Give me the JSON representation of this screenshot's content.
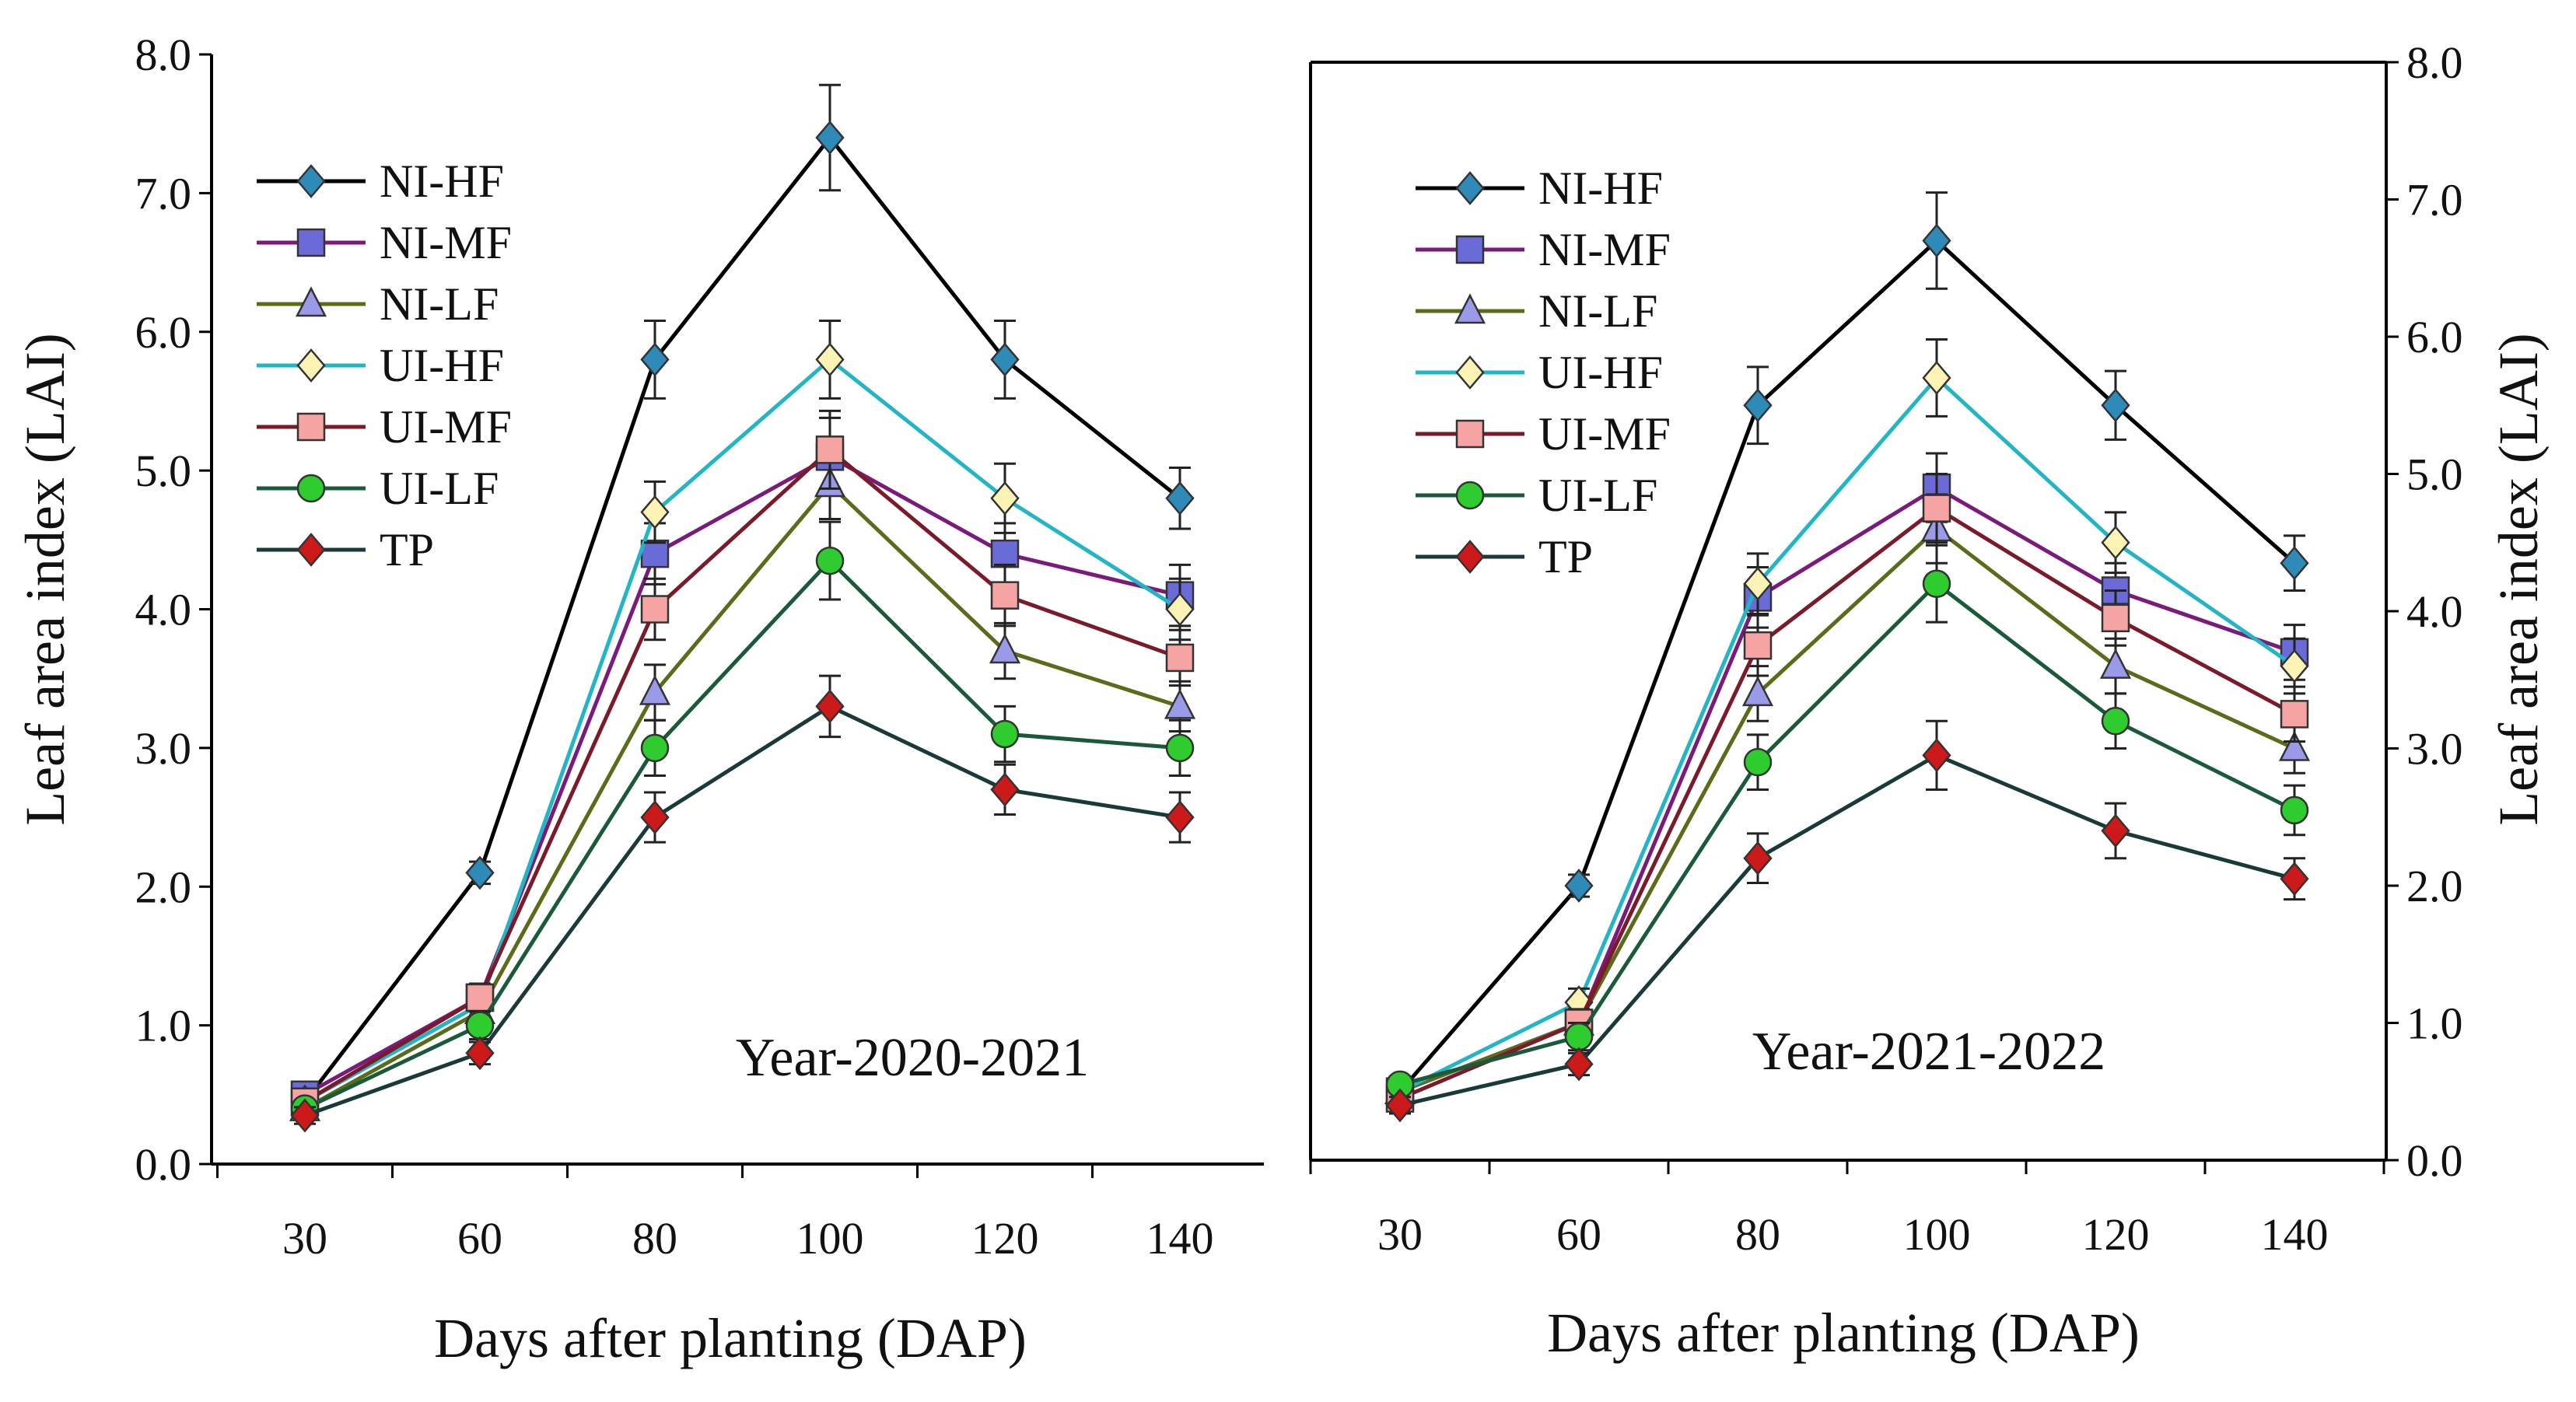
{
  "chart_data": [
    {
      "type": "line",
      "annotation": "Year-2020-2021",
      "xlabel": "Days after planting (DAP)",
      "ylabel": "Leaf area index (LAI)",
      "ylim": [
        0,
        8
      ],
      "yticks": [
        "0.0",
        "1.0",
        "2.0",
        "3.0",
        "4.0",
        "5.0",
        "6.0",
        "7.0",
        "8.0"
      ],
      "categories": [
        "30",
        "60",
        "80",
        "100",
        "120",
        "140"
      ],
      "legend_position": "top-left",
      "series": [
        {
          "name": "NI-HF",
          "marker": "diamond",
          "marker_color": "#2e8bb8",
          "line_color": "#000000",
          "values": [
            0.45,
            2.1,
            5.8,
            7.4,
            5.8,
            4.8
          ],
          "errors": [
            0.08,
            0.08,
            0.28,
            0.38,
            0.28,
            0.22
          ]
        },
        {
          "name": "NI-MF",
          "marker": "square",
          "marker_color": "#6b6bd8",
          "line_color": "#7a1a7a",
          "values": [
            0.5,
            1.2,
            4.4,
            5.1,
            4.4,
            4.1
          ],
          "errors": [
            0.06,
            0.1,
            0.22,
            0.28,
            0.22,
            0.22
          ]
        },
        {
          "name": "NI-LF",
          "marker": "triangle",
          "marker_color": "#9a9ae8",
          "line_color": "#5a6b1a",
          "values": [
            0.4,
            1.1,
            3.4,
            4.9,
            3.7,
            3.3
          ],
          "errors": [
            0.06,
            0.1,
            0.2,
            0.25,
            0.2,
            0.18
          ]
        },
        {
          "name": "UI-HF",
          "marker": "diamond",
          "marker_color": "#fdf3b5",
          "line_color": "#22b5c5",
          "values": [
            0.45,
            1.15,
            4.7,
            5.8,
            4.8,
            4.0
          ],
          "errors": [
            0.06,
            0.1,
            0.22,
            0.28,
            0.25,
            0.22
          ]
        },
        {
          "name": "UI-MF",
          "marker": "square",
          "marker_color": "#f5a3a3",
          "line_color": "#7a1a2a",
          "values": [
            0.45,
            1.2,
            4.0,
            5.15,
            4.1,
            3.65
          ],
          "errors": [
            0.06,
            0.1,
            0.22,
            0.28,
            0.22,
            0.2
          ]
        },
        {
          "name": "UI-LF",
          "marker": "circle",
          "marker_color": "#2ecc2e",
          "line_color": "#1a5a3a",
          "values": [
            0.4,
            1.0,
            3.0,
            4.35,
            3.1,
            3.0
          ],
          "errors": [
            0.06,
            0.1,
            0.2,
            0.28,
            0.2,
            0.2
          ]
        },
        {
          "name": "TP",
          "marker": "diamond",
          "marker_color": "#cc1a1a",
          "line_color": "#1a3a3a",
          "values": [
            0.35,
            0.8,
            2.5,
            3.3,
            2.7,
            2.5
          ],
          "errors": [
            0.06,
            0.08,
            0.18,
            0.22,
            0.18,
            0.18
          ]
        }
      ]
    },
    {
      "type": "line",
      "annotation": "Year-2021-2022",
      "xlabel": "Days after planting (DAP)",
      "ylabel": "Leaf area index (LAI)",
      "ylim": [
        0,
        8
      ],
      "yticks": [
        "0.0",
        "1.0",
        "2.0",
        "3.0",
        "4.0",
        "5.0",
        "6.0",
        "7.0",
        "8.0"
      ],
      "categories": [
        "30",
        "60",
        "80",
        "100",
        "120",
        "140"
      ],
      "legend_position": "top-left",
      "series": [
        {
          "name": "NI-HF",
          "marker": "diamond",
          "marker_color": "#2e8bb8",
          "line_color": "#000000",
          "values": [
            0.5,
            2.0,
            5.5,
            6.7,
            5.5,
            4.35
          ],
          "errors": [
            0.08,
            0.08,
            0.28,
            0.35,
            0.25,
            0.2
          ]
        },
        {
          "name": "NI-MF",
          "marker": "square",
          "marker_color": "#6b6bd8",
          "line_color": "#7a1a7a",
          "values": [
            0.5,
            1.0,
            4.1,
            4.9,
            4.15,
            3.7
          ],
          "errors": [
            0.06,
            0.1,
            0.22,
            0.25,
            0.2,
            0.2
          ]
        },
        {
          "name": "NI-LF",
          "marker": "triangle",
          "marker_color": "#9a9ae8",
          "line_color": "#5a6b1a",
          "values": [
            0.5,
            1.0,
            3.4,
            4.6,
            3.6,
            3.0
          ],
          "errors": [
            0.06,
            0.1,
            0.2,
            0.25,
            0.2,
            0.18
          ]
        },
        {
          "name": "UI-HF",
          "marker": "diamond",
          "marker_color": "#fdf3b5",
          "line_color": "#22b5c5",
          "values": [
            0.5,
            1.15,
            4.2,
            5.7,
            4.5,
            3.6
          ],
          "errors": [
            0.06,
            0.1,
            0.22,
            0.28,
            0.22,
            0.2
          ]
        },
        {
          "name": "UI-MF",
          "marker": "square",
          "marker_color": "#f5a3a3",
          "line_color": "#7a1a2a",
          "values": [
            0.45,
            1.0,
            3.75,
            4.75,
            3.95,
            3.25
          ],
          "errors": [
            0.06,
            0.1,
            0.22,
            0.25,
            0.2,
            0.2
          ]
        },
        {
          "name": "UI-LF",
          "marker": "circle",
          "marker_color": "#2ecc2e",
          "line_color": "#1a5a3a",
          "values": [
            0.55,
            0.9,
            2.9,
            4.2,
            3.2,
            2.55
          ],
          "errors": [
            0.06,
            0.1,
            0.2,
            0.28,
            0.2,
            0.18
          ]
        },
        {
          "name": "TP",
          "marker": "diamond",
          "marker_color": "#cc1a1a",
          "line_color": "#1a3a3a",
          "values": [
            0.4,
            0.7,
            2.2,
            2.95,
            2.4,
            2.05
          ],
          "errors": [
            0.06,
            0.08,
            0.18,
            0.25,
            0.2,
            0.15
          ]
        }
      ]
    }
  ]
}
